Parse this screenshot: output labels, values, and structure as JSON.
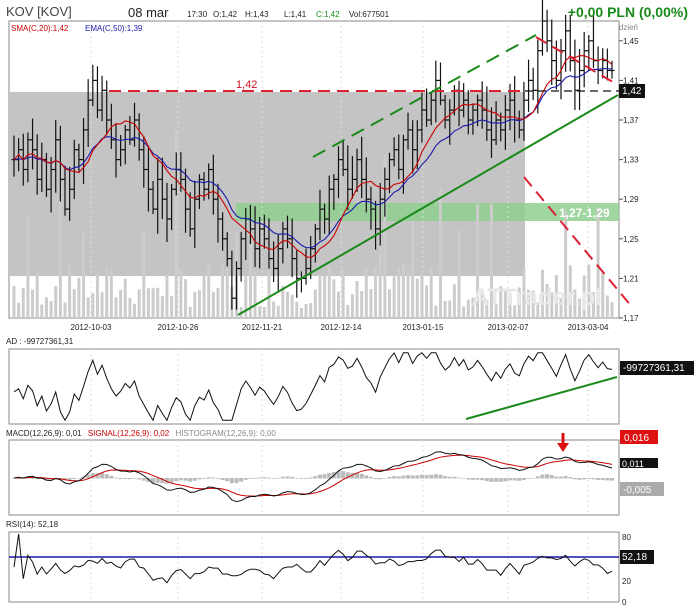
{
  "header": {
    "symbol": "KOV [KOV]",
    "date": "08 mar",
    "time": "17:30",
    "quote": {
      "O": "O:1,42",
      "H": "H:1,43",
      "L": "L:1,41",
      "C": "C:1,42",
      "Vol": "Vol:677501"
    },
    "change": "+0,00 PLN (0,00%)",
    "interval": "Interwał: dzień",
    "watermark": "ATTrader.pl"
  },
  "main": {
    "sma_label": "SMA(C,20):1,42",
    "ema_label": "EMA(C,50):1,39",
    "level_label": "1,42",
    "zone_label": "1,27-1,29",
    "last_price_tag": "1,42"
  },
  "ad_panel": {
    "title": "AD : -99727361,31",
    "value_tag": "-99727361,31"
  },
  "macd_panel": {
    "title_macd": "MACD(12,26,9): 0,01",
    "title_signal": "SIGNAL(12,26,9): 0,02",
    "title_hist": "HISTOGRAM(12,26,9): 0,00",
    "macd_tag": "0,011",
    "signal_tag": "0,016",
    "hist_tag": "-0,005"
  },
  "rsi_panel": {
    "title": "RSI(14): 52,18",
    "value_tag": "52,18"
  },
  "colors": {
    "sma": "#cc0000",
    "ema": "#1a1aaa",
    "trend_green": "#1a8a1a",
    "resistance_red": "#cc1122",
    "zone_green": "#8fcf8f",
    "volume": "#cccccc",
    "gray_zone": "#c4c4c4"
  },
  "chart_data": [
    {
      "type": "candlestick",
      "title": "KOV [KOV]",
      "x_tick_labels": [
        "2012-10-03",
        "2012-10-26",
        "2012-11-21",
        "2012-12-14",
        "2013-01-15",
        "2013-02-07",
        "2013-03-04"
      ],
      "y_tick_labels": [
        "1,17",
        "1,21",
        "1,25",
        "1,29",
        "1,33",
        "1,37",
        "1,41",
        "1,45"
      ],
      "ylim": [
        1.17,
        1.47
      ],
      "close": [
        1.33,
        1.34,
        1.32,
        1.35,
        1.34,
        1.31,
        1.33,
        1.3,
        1.32,
        1.35,
        1.31,
        1.28,
        1.3,
        1.34,
        1.33,
        1.36,
        1.39,
        1.41,
        1.38,
        1.4,
        1.37,
        1.35,
        1.33,
        1.34,
        1.36,
        1.35,
        1.37,
        1.34,
        1.32,
        1.3,
        1.28,
        1.31,
        1.29,
        1.27,
        1.3,
        1.32,
        1.31,
        1.28,
        1.26,
        1.29,
        1.31,
        1.3,
        1.32,
        1.29,
        1.27,
        1.25,
        1.23,
        1.19,
        1.22,
        1.25,
        1.27,
        1.26,
        1.24,
        1.26,
        1.25,
        1.23,
        1.22,
        1.24,
        1.26,
        1.25,
        1.23,
        1.21,
        1.21,
        1.22,
        1.24,
        1.26,
        1.28,
        1.27,
        1.3,
        1.31,
        1.33,
        1.32,
        1.3,
        1.31,
        1.33,
        1.31,
        1.29,
        1.28,
        1.26,
        1.29,
        1.31,
        1.33,
        1.34,
        1.32,
        1.35,
        1.36,
        1.34,
        1.36,
        1.38,
        1.37,
        1.39,
        1.41,
        1.39,
        1.37,
        1.38,
        1.4,
        1.38,
        1.39,
        1.37,
        1.38,
        1.39,
        1.38,
        1.36,
        1.35,
        1.37,
        1.36,
        1.38,
        1.39,
        1.37,
        1.36,
        1.39,
        1.41,
        1.4,
        1.44,
        1.47,
        1.45,
        1.43,
        1.41,
        1.44,
        1.46,
        1.43,
        1.4,
        1.42,
        1.44,
        1.45,
        1.43,
        1.42,
        1.43,
        1.42,
        1.42
      ],
      "sma20_last": 1.42,
      "ema50_last": 1.39,
      "annotations": [
        "1,42",
        "1,27-1,29"
      ]
    },
    {
      "type": "line",
      "title": "AD",
      "last": -99727361.31
    },
    {
      "type": "line",
      "title": "MACD(12,26,9)",
      "series": [
        {
          "name": "MACD",
          "last": 0.011
        },
        {
          "name": "SIGNAL",
          "last": 0.016
        },
        {
          "name": "HISTOGRAM",
          "last": -0.005
        }
      ]
    },
    {
      "type": "line",
      "title": "RSI(14)",
      "last": 52.18,
      "y_tick_labels": [
        "80",
        "20",
        "0"
      ]
    }
  ]
}
